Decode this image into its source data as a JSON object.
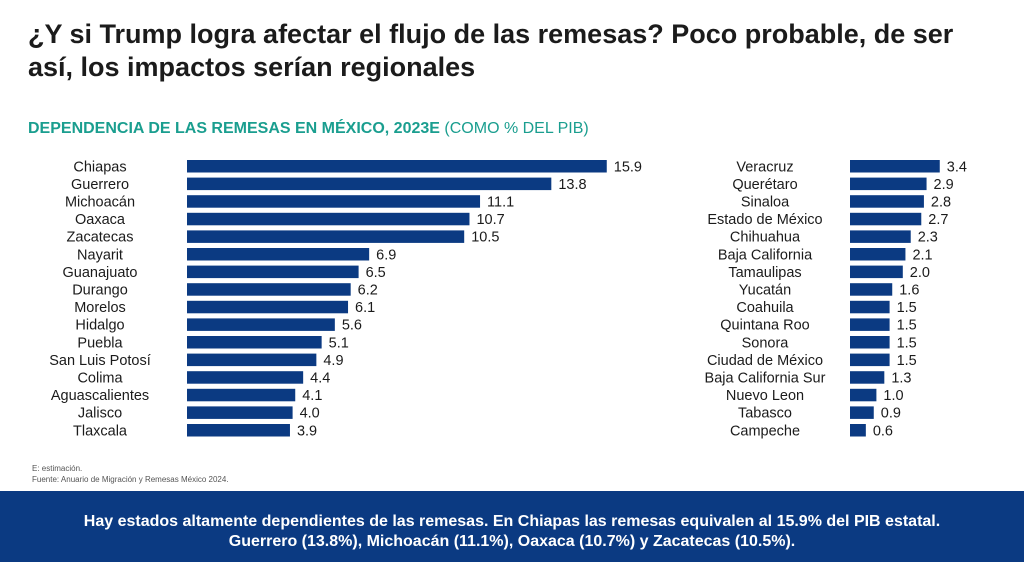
{
  "headline": "¿Y si Trump logra afectar el flujo de las remesas? Poco probable, de ser así, los impactos serían regionales",
  "chart_data": {
    "type": "bar",
    "orientation": "horizontal",
    "title": "DEPENDENCIA DE LAS REMESAS EN MÉXICO, 2023E",
    "title_suffix": "(COMO % DEL PIB)",
    "unit": "% del PIB",
    "bar_color": "#0b3a82",
    "left_panel": {
      "categories": [
        "Chiapas",
        "Guerrero",
        "Michoacán",
        "Oaxaca",
        "Zacatecas",
        "Nayarit",
        "Guanajuato",
        "Durango",
        "Morelos",
        "Hidalgo",
        "Puebla",
        "San Luis Potosí",
        "Colima",
        "Aguascalientes",
        "Jalisco",
        "Tlaxcala"
      ],
      "values": [
        15.9,
        13.8,
        11.1,
        10.7,
        10.5,
        6.9,
        6.5,
        6.2,
        6.1,
        5.6,
        5.1,
        4.9,
        4.4,
        4.1,
        4.0,
        3.9
      ]
    },
    "right_panel": {
      "categories": [
        "Veracruz",
        "Querétaro",
        "Sinaloa",
        "Estado de México",
        "Chihuahua",
        "Baja California",
        "Tamaulipas",
        "Yucatán",
        "Coahuila",
        "Quintana Roo",
        "Sonora",
        "Ciudad de México",
        "Baja California Sur",
        "Nuevo Leon",
        "Tabasco",
        "Campeche"
      ],
      "values": [
        3.4,
        2.9,
        2.8,
        2.7,
        2.3,
        2.1,
        2.0,
        1.6,
        1.5,
        1.5,
        1.5,
        1.5,
        1.3,
        1.0,
        0.9,
        0.6
      ]
    }
  },
  "footnotes": {
    "note": "E: estimación.",
    "source": "Fuente: Anuario de Migración y Remesas México 2024."
  },
  "banner": {
    "line1": "Hay estados altamente dependientes de las remesas. En Chiapas las remesas equivalen al 15.9% del PIB estatal.",
    "line2": "Guerrero (13.8%), Michoacán (11.1%), Oaxaca (10.7%) y Zacatecas (10.5%)."
  },
  "colors": {
    "accent": "#1a9e8f",
    "banner_bg": "#0b3a82",
    "bar": "#0b3a82"
  }
}
